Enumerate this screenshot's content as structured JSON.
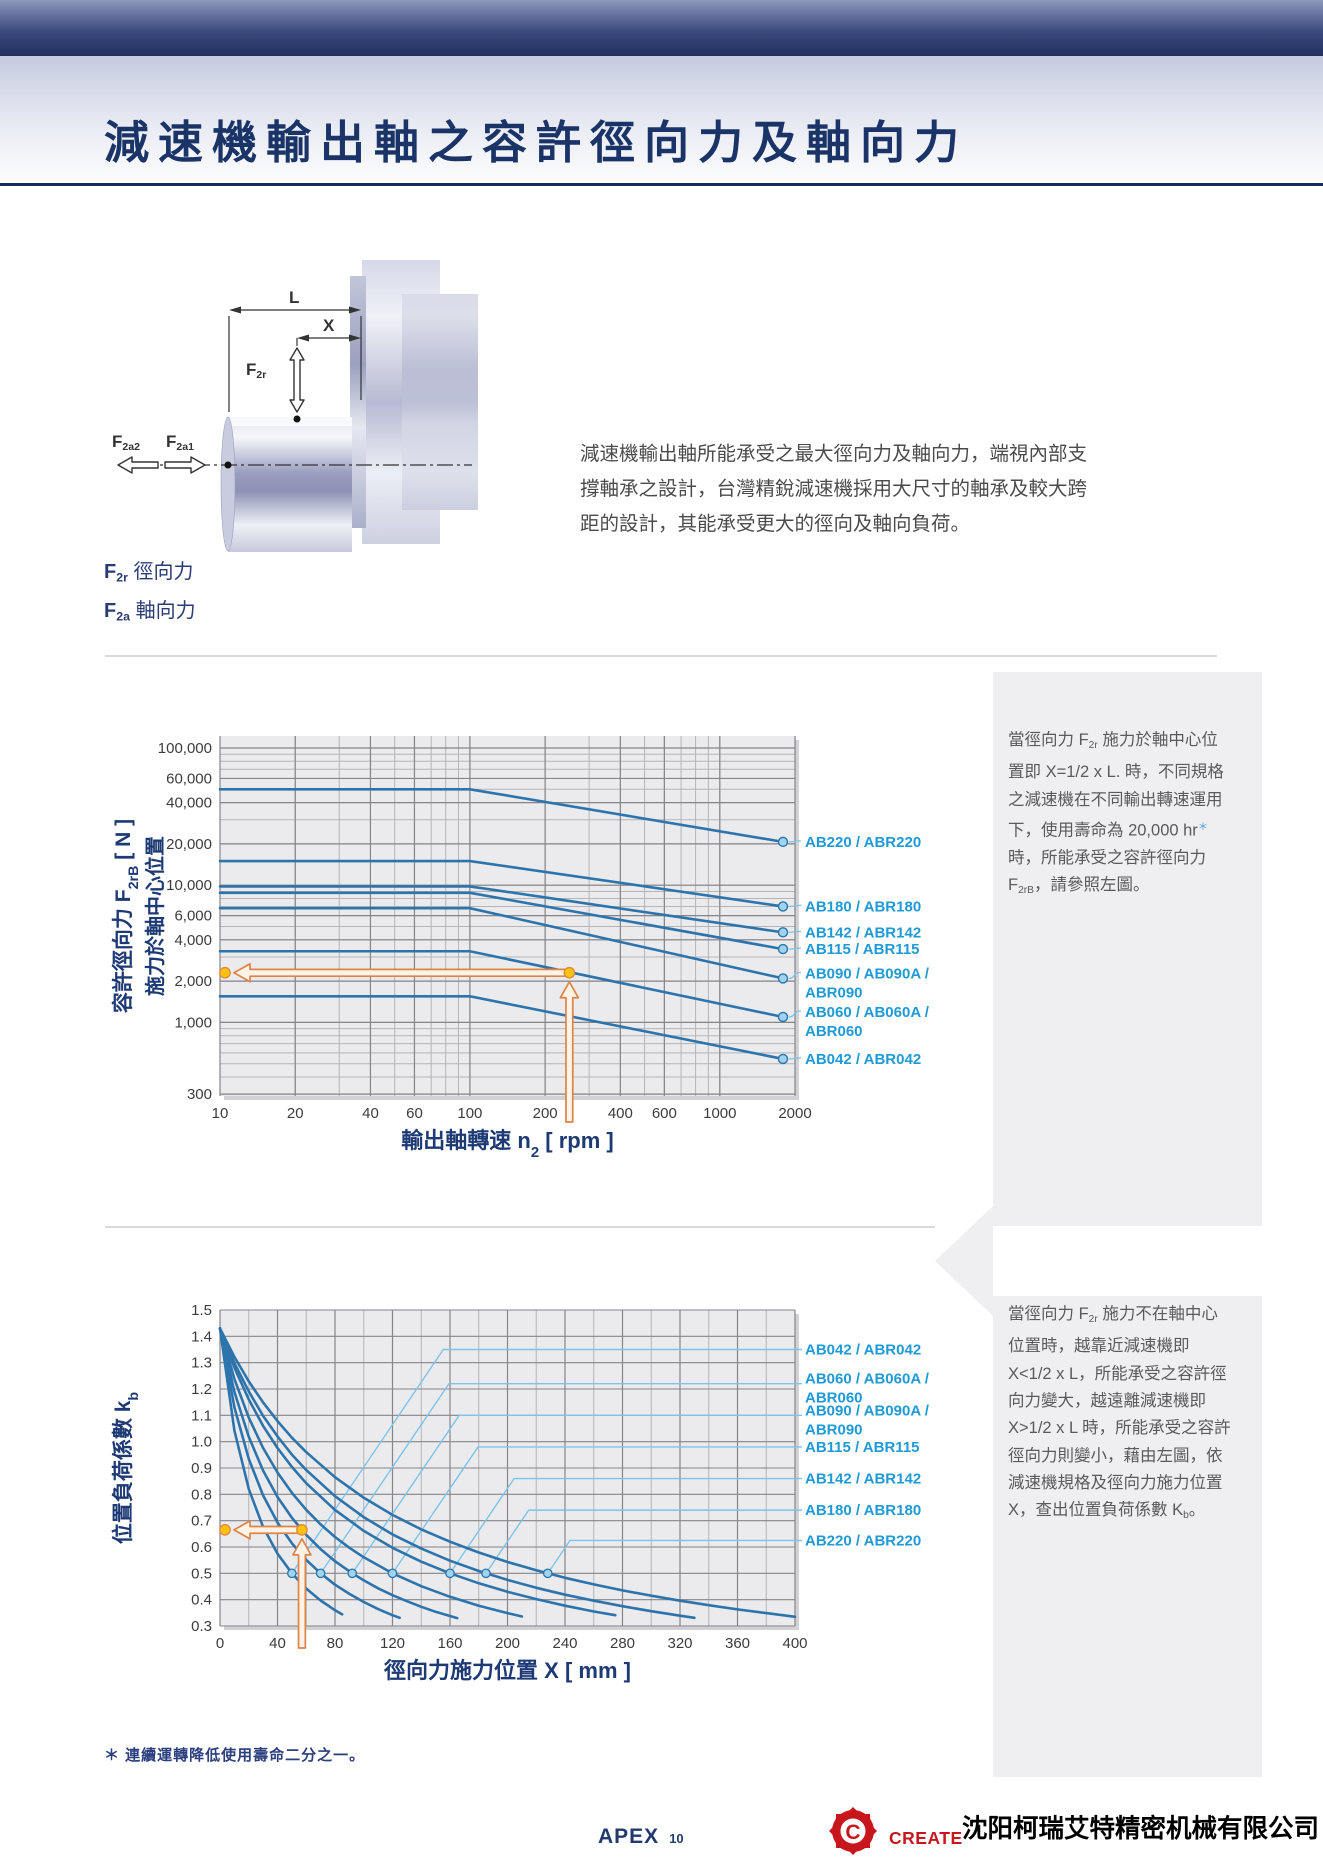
{
  "page": {
    "title": "減速機輸出軸之容許徑向力及軸向力"
  },
  "diagram": {
    "dim_l": "L",
    "dim_x": "X",
    "f2r": "F<sub>2r</sub>",
    "f2a2": "F<sub>2a2</sub>",
    "f2a1": "F<sub>2a1</sub>",
    "legend": [
      "<b>F<sub>2r</sub></b> 徑向力",
      "<b>F<sub>2a</sub></b> 軸向力"
    ]
  },
  "intro": {
    "lines": [
      "減速機輸出軸所能承受之最大徑向力及軸向力，端視內部支",
      "撐軸承之設計，台灣精銳減速機採用大尺寸的軸承及較大跨",
      "距的設計，其能承受更大的徑向及軸向負荷。"
    ]
  },
  "side_notes": {
    "note1_lines": [
      "當徑向力 F<sub>2r</sub> 施力於軸中心位",
      "置即 X=1/2 x L. 時，不同規格",
      "之減速機在不同輸出轉速運用",
      "下，使用壽命為 20,000 hr<sup>＊</sup>",
      "時，所能承受之容許徑向力",
      "F<sub>2rB</sub>，請參照左圖。"
    ],
    "note2_lines": [
      "當徑向力 F<sub>2r</sub> 施力不在軸中心",
      "位置時，越靠近減速機即",
      "X&lt;1/2 x L，所能承受之容許徑",
      "向力變大，越遠離減速機即",
      "X&gt;1/2 x L 時，所能承受之容許",
      "徑向力則變小，藉由左圖，依",
      "減速機規格及徑向力施力位置",
      "X，查出位置負荷係數 K<sub>b</sub>。"
    ]
  },
  "footnote": "＊ 連續運轉降低使用壽命二分之一。",
  "footer": {
    "brand": "APEX",
    "page_no": "10",
    "logo_text": "CREATE",
    "logo_letter": "C",
    "company": "沈阳柯瑞艾特精密机械有限公司"
  },
  "colors": {
    "curve": "#2d74ac",
    "series_label": "#1f9ad6",
    "leader": "#7cc4ea",
    "curve_dot_fill": "#9ed4f0",
    "annotation_stroke": "#dd8448",
    "annotation_fill": "#fdf3e6",
    "annotation_dot": "#ffc112",
    "navy": "#1d3a75",
    "grid_minor": "#b5b5b8",
    "grid_major": "#85858a",
    "plot_bg": "#ebebed",
    "tick_text": "#3c3c3c"
  },
  "chart_data": [
    {
      "type": "line",
      "x_scale": "log",
      "y_scale": "log",
      "xlim": [
        10,
        2000
      ],
      "ylim": [
        300,
        100000
      ],
      "grid": true,
      "legend_position": "right",
      "xlabel_parts": [
        {
          "t": "輸出軸轉速 n"
        },
        {
          "t": "2",
          "sub": true
        },
        {
          "t": " [ rpm ]"
        }
      ],
      "ylabel_lines": [
        [
          {
            "t": "容許徑向力 F"
          },
          {
            "t": "2rB",
            "sub": true
          },
          {
            "t": " [ N ]"
          }
        ],
        [
          {
            "t": "施力於軸中心位置"
          }
        ]
      ],
      "x_ticks": [
        {
          "v": 10,
          "label": "10"
        },
        {
          "v": 20,
          "label": "20"
        },
        {
          "v": 40,
          "label": "40"
        },
        {
          "v": 60,
          "label": "60"
        },
        {
          "v": 100,
          "label": "100"
        },
        {
          "v": 200,
          "label": "200"
        },
        {
          "v": 400,
          "label": "400"
        },
        {
          "v": 600,
          "label": "600"
        },
        {
          "v": 1000,
          "label": "1000"
        },
        {
          "v": 2000,
          "label": "2000"
        }
      ],
      "y_ticks": [
        {
          "v": 100000,
          "label": "100,000"
        },
        {
          "v": 60000,
          "label": "60,000"
        },
        {
          "v": 40000,
          "label": "40,000"
        },
        {
          "v": 20000,
          "label": "20,000"
        },
        {
          "v": 10000,
          "label": "10,000"
        },
        {
          "v": 6000,
          "label": "6,000"
        },
        {
          "v": 4000,
          "label": "4,000"
        },
        {
          "v": 2000,
          "label": "2,000"
        },
        {
          "v": 1000,
          "label": "1,000"
        },
        {
          "v": 300,
          "label": "300"
        }
      ],
      "series": [
        {
          "id": "AB220",
          "label_lines": [
            "AB220 / ABR220"
          ],
          "flat": 50000,
          "end": 20000,
          "points": [
            [
              10,
              50000
            ],
            [
              100,
              50000
            ],
            [
              2000,
              20000
            ]
          ]
        },
        {
          "id": "AB180",
          "label_lines": [
            "AB180 / ABR180"
          ],
          "flat": 15000,
          "end": 6800,
          "points": [
            [
              10,
              15000
            ],
            [
              100,
              15000
            ],
            [
              2000,
              6800
            ]
          ]
        },
        {
          "id": "AB142",
          "label_lines": [
            "AB142 / ABR142"
          ],
          "flat": 9800,
          "end": 4400,
          "points": [
            [
              10,
              9800
            ],
            [
              100,
              9800
            ],
            [
              2000,
              4400
            ]
          ]
        },
        {
          "id": "AB115",
          "label_lines": [
            "AB115 / ABR115"
          ],
          "flat": 8800,
          "end": 3300,
          "points": [
            [
              10,
              8800
            ],
            [
              100,
              8800
            ],
            [
              2000,
              3300
            ]
          ]
        },
        {
          "id": "AB090",
          "label_lines": [
            "AB090 / AB090A /",
            "ABR090"
          ],
          "flat": 6800,
          "end": 2000,
          "points": [
            [
              10,
              6800
            ],
            [
              100,
              6800
            ],
            [
              2000,
              2000
            ]
          ]
        },
        {
          "id": "AB060",
          "label_lines": [
            "AB060 / AB060A /",
            "ABR060"
          ],
          "flat": 3300,
          "end": 1050,
          "points": [
            [
              10,
              3300
            ],
            [
              100,
              3300
            ],
            [
              2000,
              1050
            ]
          ]
        },
        {
          "id": "AB042",
          "label_lines": [
            "AB042 / ABR042"
          ],
          "flat": 1550,
          "end": 520,
          "points": [
            [
              10,
              1550
            ],
            [
              100,
              1550
            ],
            [
              2000,
              520
            ]
          ]
        }
      ],
      "annotation": {
        "n2_rpm": 250,
        "f2rb": 2300
      }
    },
    {
      "type": "line",
      "x_scale": "linear",
      "y_scale": "linear",
      "xlim": [
        0,
        400
      ],
      "ylim": [
        0.3,
        1.5
      ],
      "grid": true,
      "legend_position": "right",
      "xlabel_parts": [
        {
          "t": "徑向力施力位置 X [ mm ]"
        }
      ],
      "ylabel_lines": [
        [
          {
            "t": "位置負荷係數 k"
          },
          {
            "t": "b",
            "sub": true
          }
        ]
      ],
      "x_ticks": [
        {
          "v": 0,
          "label": "0"
        },
        {
          "v": 40,
          "label": "40"
        },
        {
          "v": 80,
          "label": "80"
        },
        {
          "v": 120,
          "label": "120"
        },
        {
          "v": 160,
          "label": "160"
        },
        {
          "v": 200,
          "label": "200"
        },
        {
          "v": 240,
          "label": "240"
        },
        {
          "v": 280,
          "label": "280"
        },
        {
          "v": 320,
          "label": "320"
        },
        {
          "v": 360,
          "label": "360"
        },
        {
          "v": 400,
          "label": "400"
        }
      ],
      "y_ticks": [
        {
          "v": 1.5,
          "label": "1.5"
        },
        {
          "v": 1.4,
          "label": "1.4"
        },
        {
          "v": 1.3,
          "label": "1.3"
        },
        {
          "v": 1.2,
          "label": "1.2"
        },
        {
          "v": 1.1,
          "label": "1.1"
        },
        {
          "v": 1.0,
          "label": "1.0"
        },
        {
          "v": 0.9,
          "label": "0.9"
        },
        {
          "v": 0.8,
          "label": "0.8"
        },
        {
          "v": 0.7,
          "label": "0.7"
        },
        {
          "v": 0.6,
          "label": "0.6"
        },
        {
          "v": 0.5,
          "label": "0.5"
        },
        {
          "v": 0.4,
          "label": "0.4"
        },
        {
          "v": 0.3,
          "label": "0.3"
        }
      ],
      "series": [
        {
          "id": "AB042",
          "label_lines": [
            "AB042 / ABR042"
          ],
          "level": 1.35,
          "dot": [
            50,
            0.5
          ],
          "points": [
            [
              0,
              1.43
            ],
            [
              10,
              1.042
            ],
            [
              20,
              0.82
            ],
            [
              30,
              0.676
            ],
            [
              40,
              0.575
            ],
            [
              50,
              0.5
            ],
            [
              60,
              0.442
            ],
            [
              70,
              0.397
            ],
            [
              80,
              0.36
            ],
            [
              85,
              0.344
            ]
          ]
        },
        {
          "id": "AB060",
          "label_lines": [
            "AB060 / AB060A /",
            "ABR060"
          ],
          "level": 1.22,
          "dot": [
            70,
            0.5
          ],
          "points": [
            [
              0,
              1.43
            ],
            [
              10,
              1.13
            ],
            [
              20,
              0.934
            ],
            [
              30,
              0.796
            ],
            [
              40,
              0.693
            ],
            [
              50,
              0.614
            ],
            [
              60,
              0.551
            ],
            [
              70,
              0.5
            ],
            [
              80,
              0.457
            ],
            [
              90,
              0.422
            ],
            [
              100,
              0.391
            ],
            [
              110,
              0.364
            ],
            [
              120,
              0.341
            ],
            [
              125,
              0.331
            ]
          ]
        },
        {
          "id": "AB090",
          "label_lines": [
            "AB090 / AB090A /",
            "ABR090"
          ],
          "level": 1.1,
          "dot": [
            92,
            0.5
          ],
          "points": [
            [
              0,
              1.43
            ],
            [
              10,
              1.189
            ],
            [
              20,
              1.018
            ],
            [
              30,
              0.89
            ],
            [
              40,
              0.79
            ],
            [
              50,
              0.711
            ],
            [
              60,
              0.646
            ],
            [
              70,
              0.592
            ],
            [
              80,
              0.546
            ],
            [
              92,
              0.5
            ],
            [
              100,
              0.473
            ],
            [
              110,
              0.443
            ],
            [
              120,
              0.417
            ],
            [
              130,
              0.394
            ],
            [
              140,
              0.373
            ],
            [
              150,
              0.354
            ],
            [
              160,
              0.338
            ],
            [
              165,
              0.33
            ]
          ]
        },
        {
          "id": "AB115",
          "label_lines": [
            "AB115 / ABR115"
          ],
          "level": 0.98,
          "dot": [
            120,
            0.5
          ],
          "points": [
            [
              0,
              1.43
            ],
            [
              10,
              1.238
            ],
            [
              20,
              1.091
            ],
            [
              30,
              0.976
            ],
            [
              40,
              0.883
            ],
            [
              50,
              0.806
            ],
            [
              60,
              0.741
            ],
            [
              70,
              0.686
            ],
            [
              80,
              0.638
            ],
            [
              90,
              0.597
            ],
            [
              100,
              0.561
            ],
            [
              120,
              0.5
            ],
            [
              140,
              0.451
            ],
            [
              160,
              0.411
            ],
            [
              180,
              0.377
            ],
            [
              200,
              0.349
            ],
            [
              210,
              0.336
            ]
          ]
        },
        {
          "id": "AB142",
          "label_lines": [
            "AB142 / ABR142"
          ],
          "level": 0.86,
          "dot": [
            160,
            0.5
          ],
          "points": [
            [
              0,
              1.43
            ],
            [
              10,
              1.281
            ],
            [
              20,
              1.16
            ],
            [
              30,
              1.06
            ],
            [
              40,
              0.976
            ],
            [
              50,
              0.904
            ],
            [
              60,
              0.842
            ],
            [
              80,
              0.741
            ],
            [
              100,
              0.661
            ],
            [
              120,
              0.597
            ],
            [
              140,
              0.544
            ],
            [
              160,
              0.5
            ],
            [
              180,
              0.462
            ],
            [
              200,
              0.43
            ],
            [
              220,
              0.402
            ],
            [
              240,
              0.377
            ],
            [
              260,
              0.355
            ],
            [
              275,
              0.341
            ]
          ]
        },
        {
          "id": "AB180",
          "label_lines": [
            "AB180 / ABR180"
          ],
          "level": 0.74,
          "dot": [
            185,
            0.5
          ],
          "points": [
            [
              0,
              1.43
            ],
            [
              10,
              1.299
            ],
            [
              20,
              1.191
            ],
            [
              30,
              1.098
            ],
            [
              40,
              1.02
            ],
            [
              50,
              0.951
            ],
            [
              60,
              0.892
            ],
            [
              80,
              0.793
            ],
            [
              100,
              0.713
            ],
            [
              120,
              0.648
            ],
            [
              140,
              0.594
            ],
            [
              160,
              0.548
            ],
            [
              180,
              0.509
            ],
            [
              200,
              0.475
            ],
            [
              220,
              0.445
            ],
            [
              240,
              0.419
            ],
            [
              260,
              0.396
            ],
            [
              280,
              0.375
            ],
            [
              300,
              0.356
            ],
            [
              320,
              0.339
            ],
            [
              330,
              0.331
            ]
          ]
        },
        {
          "id": "AB220",
          "label_lines": [
            "AB220 / ABR220"
          ],
          "level": 0.625,
          "dot": [
            228,
            0.5
          ],
          "points": [
            [
              0,
              1.43
            ],
            [
              10,
              1.322
            ],
            [
              20,
              1.229
            ],
            [
              30,
              1.149
            ],
            [
              40,
              1.078
            ],
            [
              50,
              1.015
            ],
            [
              60,
              0.96
            ],
            [
              80,
              0.865
            ],
            [
              100,
              0.787
            ],
            [
              120,
              0.722
            ],
            [
              140,
              0.667
            ],
            [
              160,
              0.62
            ],
            [
              180,
              0.579
            ],
            [
              200,
              0.543
            ],
            [
              220,
              0.512
            ],
            [
              240,
              0.483
            ],
            [
              260,
              0.458
            ],
            [
              280,
              0.435
            ],
            [
              300,
              0.415
            ],
            [
              320,
              0.396
            ],
            [
              340,
              0.379
            ],
            [
              360,
              0.363
            ],
            [
              380,
              0.349
            ],
            [
              400,
              0.335
            ]
          ]
        }
      ],
      "annotation": {
        "x_mm": 57,
        "kb": 0.665
      }
    }
  ]
}
